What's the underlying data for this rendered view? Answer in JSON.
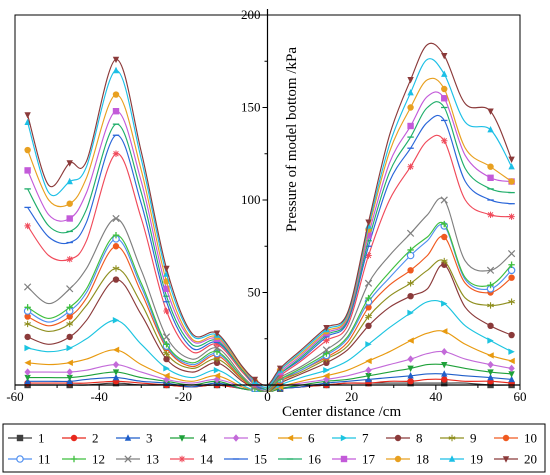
{
  "chart_data": {
    "type": "line",
    "xlabel": "Center distance /cm",
    "ylabel": "Pressure of model bottom /kPa",
    "xlim": [
      -60,
      60
    ],
    "ylim": [
      0,
      200
    ],
    "xticks": [
      "-60",
      "-40",
      "-20",
      "0",
      "20",
      "40",
      "60"
    ],
    "yticks": [
      "0",
      "50",
      "100",
      "150",
      "200"
    ],
    "x": [
      -57,
      -52,
      -47,
      -43,
      -36,
      -30,
      -24,
      -18,
      -12,
      -6,
      -3,
      0,
      3,
      8,
      14,
      19,
      24,
      29,
      34,
      38,
      42,
      47,
      53,
      58
    ],
    "series": [
      {
        "name": "1",
        "color": "#3f3f3f",
        "marker": "square",
        "values": [
          0,
          0,
          0,
          0,
          1,
          0,
          0,
          -1,
          0,
          -2,
          -3,
          -4,
          -2,
          -1,
          0,
          1,
          1,
          1,
          1,
          1,
          1,
          1,
          0,
          0
        ]
      },
      {
        "name": "2",
        "color": "#e8281c",
        "marker": "circle",
        "values": [
          1,
          1,
          1,
          1,
          2,
          1,
          0,
          -1,
          0,
          -2,
          -3,
          -4,
          -2,
          -1,
          0,
          1,
          1,
          2,
          2,
          3,
          3,
          2,
          2,
          1
        ]
      },
      {
        "name": "3",
        "color": "#1f5ec9",
        "marker": "triangle",
        "values": [
          2,
          2,
          2,
          3,
          4,
          2,
          1,
          -1,
          1,
          -2,
          -3,
          -4,
          -2,
          -1,
          1,
          2,
          3,
          4,
          5,
          6,
          6,
          5,
          4,
          3
        ]
      },
      {
        "name": "4",
        "color": "#1fa13a",
        "marker": "triangle-down",
        "values": [
          4,
          4,
          4,
          5,
          7,
          4,
          2,
          0,
          2,
          -2,
          -3,
          -4,
          -2,
          0,
          2,
          3,
          5,
          7,
          9,
          11,
          11,
          9,
          7,
          6
        ]
      },
      {
        "name": "5",
        "color": "#c36ad9",
        "marker": "diamond",
        "values": [
          7,
          7,
          7,
          8,
          11,
          7,
          3,
          1,
          3,
          -1,
          -3,
          -4,
          -1,
          1,
          3,
          5,
          8,
          11,
          14,
          17,
          18,
          14,
          11,
          9
        ]
      },
      {
        "name": "6",
        "color": "#e89a10",
        "marker": "triangle-left",
        "values": [
          12,
          11,
          12,
          14,
          19,
          11,
          5,
          2,
          5,
          -1,
          -3,
          -4,
          -1,
          2,
          5,
          8,
          13,
          18,
          24,
          28,
          29,
          22,
          16,
          13
        ]
      },
      {
        "name": "7",
        "color": "#1cc4e0",
        "marker": "triangle-right",
        "values": [
          20,
          18,
          20,
          25,
          35,
          22,
          9,
          4,
          8,
          0,
          -3,
          -4,
          0,
          4,
          8,
          13,
          22,
          31,
          39,
          45,
          44,
          32,
          24,
          18
        ]
      },
      {
        "name": "8",
        "color": "#8b3a3a",
        "marker": "circle",
        "values": [
          26,
          22,
          26,
          35,
          57,
          38,
          14,
          7,
          12,
          2,
          -2,
          -4,
          1,
          6,
          12,
          19,
          32,
          42,
          48,
          52,
          65,
          42,
          32,
          27
        ]
      },
      {
        "name": "9",
        "color": "#8f8f1f",
        "marker": "star",
        "values": [
          33,
          29,
          33,
          43,
          63,
          44,
          17,
          9,
          14,
          3,
          -2,
          -4,
          2,
          7,
          14,
          21,
          37,
          48,
          55,
          62,
          67,
          47,
          43,
          45
        ]
      },
      {
        "name": "10",
        "color": "#f05a20",
        "marker": "circle",
        "values": [
          37,
          32,
          37,
          47,
          75,
          50,
          20,
          10,
          16,
          3,
          -2,
          -3,
          2,
          8,
          15,
          23,
          42,
          54,
          62,
          70,
          80,
          55,
          50,
          58
        ]
      },
      {
        "name": "11",
        "color": "#4f8ff0",
        "marker": "circle-open",
        "values": [
          40,
          34,
          40,
          50,
          79,
          53,
          21,
          11,
          17,
          4,
          -2,
          -3,
          3,
          8,
          16,
          25,
          45,
          58,
          70,
          78,
          86,
          57,
          52,
          62
        ]
      },
      {
        "name": "12",
        "color": "#3fbf3f",
        "marker": "plus",
        "values": [
          42,
          36,
          42,
          52,
          81,
          55,
          22,
          12,
          18,
          4,
          -2,
          -3,
          3,
          9,
          17,
          26,
          47,
          61,
          73,
          80,
          87,
          58,
          54,
          65
        ]
      },
      {
        "name": "13",
        "color": "#7f7f7f",
        "marker": "x",
        "values": [
          53,
          44,
          52,
          63,
          90,
          62,
          26,
          14,
          20,
          5,
          -1,
          -3,
          4,
          10,
          19,
          29,
          55,
          70,
          82,
          92,
          100,
          67,
          62,
          71
        ]
      },
      {
        "name": "14",
        "color": "#f04a5a",
        "marker": "asterisk",
        "values": [
          86,
          70,
          68,
          78,
          125,
          90,
          40,
          18,
          22,
          7,
          0,
          -2,
          5,
          13,
          24,
          32,
          70,
          100,
          118,
          132,
          132,
          100,
          92,
          91
        ]
      },
      {
        "name": "15",
        "color": "#2a66d9",
        "marker": "dash",
        "values": [
          96,
          80,
          77,
          88,
          135,
          98,
          45,
          20,
          23,
          8,
          0,
          -2,
          6,
          14,
          26,
          34,
          75,
          110,
          128,
          142,
          143,
          110,
          100,
          98
        ]
      },
      {
        "name": "16",
        "color": "#1fae6a",
        "marker": "dash",
        "values": [
          106,
          86,
          83,
          95,
          141,
          104,
          48,
          22,
          24,
          8,
          1,
          -2,
          6,
          15,
          27,
          35,
          78,
          115,
          134,
          150,
          150,
          117,
          106,
          104
        ]
      },
      {
        "name": "17",
        "color": "#c35ad9",
        "marker": "square",
        "values": [
          116,
          92,
          90,
          104,
          148,
          110,
          52,
          24,
          25,
          9,
          1,
          -1,
          7,
          16,
          28,
          36,
          81,
          120,
          140,
          156,
          155,
          124,
          112,
          110
        ]
      },
      {
        "name": "18",
        "color": "#e8a020",
        "marker": "circle",
        "values": [
          127,
          100,
          98,
          112,
          157,
          116,
          56,
          25,
          26,
          9,
          2,
          -1,
          8,
          17,
          29,
          37,
          84,
          126,
          150,
          165,
          160,
          128,
          118,
          110
        ]
      },
      {
        "name": "19",
        "color": "#1cbfe6",
        "marker": "triangle",
        "values": [
          142,
          104,
          110,
          118,
          170,
          122,
          60,
          27,
          27,
          10,
          2,
          -1,
          8,
          18,
          30,
          38,
          86,
          130,
          158,
          176,
          168,
          142,
          138,
          118
        ]
      },
      {
        "name": "20",
        "color": "#8b3a3a",
        "marker": "triangle-down",
        "values": [
          146,
          108,
          120,
          121,
          176,
          126,
          63,
          28,
          28,
          10,
          3,
          0,
          9,
          19,
          31,
          39,
          88,
          135,
          165,
          184,
          178,
          152,
          148,
          122
        ]
      }
    ]
  }
}
